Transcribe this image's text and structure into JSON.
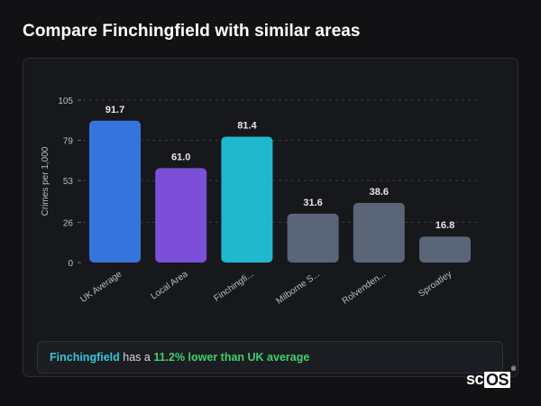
{
  "title": "Compare Finchingfield with similar areas",
  "chart_data": {
    "type": "bar",
    "ylabel": "Crimes per 1,000",
    "xlabel": "",
    "ylim": [
      0,
      105
    ],
    "yticks": [
      0,
      26,
      53,
      79,
      105
    ],
    "grid": true,
    "categories": [
      "UK Average",
      "Local Area",
      "Finchingfi...",
      "Milborne S...",
      "Rolvenden...",
      "Sproatley"
    ],
    "values": [
      91.7,
      61.0,
      81.4,
      31.6,
      38.6,
      16.8
    ],
    "value_labels": [
      "91.7",
      "61.0",
      "81.4",
      "31.6",
      "38.6",
      "16.8"
    ],
    "bar_colors": [
      "#3574dc",
      "#7b4fd8",
      "#1fb8cd",
      "#5a6577",
      "#5a6577",
      "#5a6577"
    ]
  },
  "footer": {
    "area": "Finchingfield",
    "middle": " has a ",
    "highlight": "11.2% lower than UK average"
  },
  "logo": {
    "prefix": "sc",
    "boxed": "OS",
    "mark": "®"
  }
}
